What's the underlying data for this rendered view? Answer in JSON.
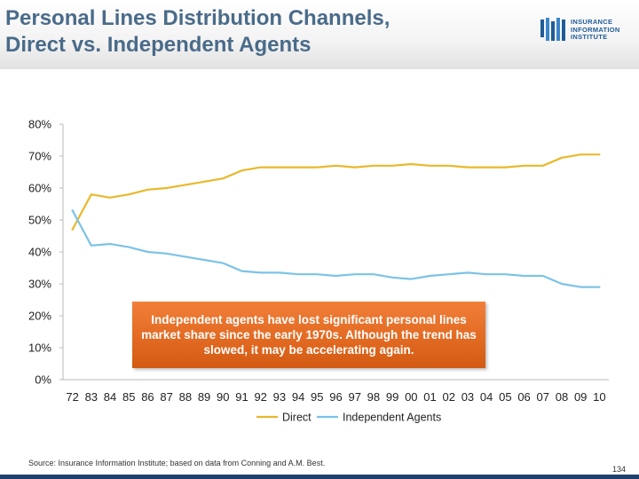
{
  "header": {
    "title_line1": "Personal Lines Distribution Channels,",
    "title_line2": "Direct vs. Independent Agents"
  },
  "logo": {
    "line1": "INSURANCE",
    "line2": "INFORMATION",
    "line3": "INSTITUTE",
    "color": "#1f5c99"
  },
  "callout": {
    "text": "Independent agents have lost significant personal lines market share since the early 1970s. Although the trend has slowed, it may be accelerating again.",
    "color": "#e36a22"
  },
  "footer": {
    "source": "Source:  Insurance Information Institute; based on data from Conning and A.M. Best.",
    "page_number": "134"
  },
  "chart_data": {
    "type": "line",
    "title": "Personal Lines Distribution Channels, Direct vs. Independent Agents",
    "xlabel": "",
    "ylabel": "",
    "categories": [
      "72",
      "83",
      "84",
      "85",
      "86",
      "87",
      "88",
      "89",
      "90",
      "91",
      "92",
      "93",
      "94",
      "95",
      "96",
      "97",
      "98",
      "99",
      "00",
      "01",
      "02",
      "03",
      "04",
      "05",
      "06",
      "07",
      "08",
      "09",
      "10"
    ],
    "y_ticks": [
      "0%",
      "10%",
      "20%",
      "30%",
      "40%",
      "50%",
      "60%",
      "70%",
      "80%"
    ],
    "ylim": [
      0,
      80
    ],
    "legend_position": "bottom",
    "series": [
      {
        "name": "Direct",
        "color": "#e8b92c",
        "values": [
          47,
          58,
          57,
          58,
          59.5,
          60,
          61,
          62,
          63,
          65.5,
          66.5,
          66.5,
          66.5,
          66.5,
          67,
          66.5,
          67,
          67,
          67.5,
          67,
          67,
          66.5,
          66.5,
          66.5,
          67,
          67,
          69.5,
          70.5,
          70.5
        ]
      },
      {
        "name": "Independent Agents",
        "color": "#7cc3e6",
        "values": [
          53,
          42,
          42.5,
          41.5,
          40,
          39.5,
          38.5,
          37.5,
          36.5,
          34,
          33.5,
          33.5,
          33,
          33,
          32.5,
          33,
          33,
          32,
          31.5,
          32.5,
          33,
          33.5,
          33,
          33,
          32.5,
          32.5,
          30,
          29,
          29
        ]
      }
    ]
  }
}
